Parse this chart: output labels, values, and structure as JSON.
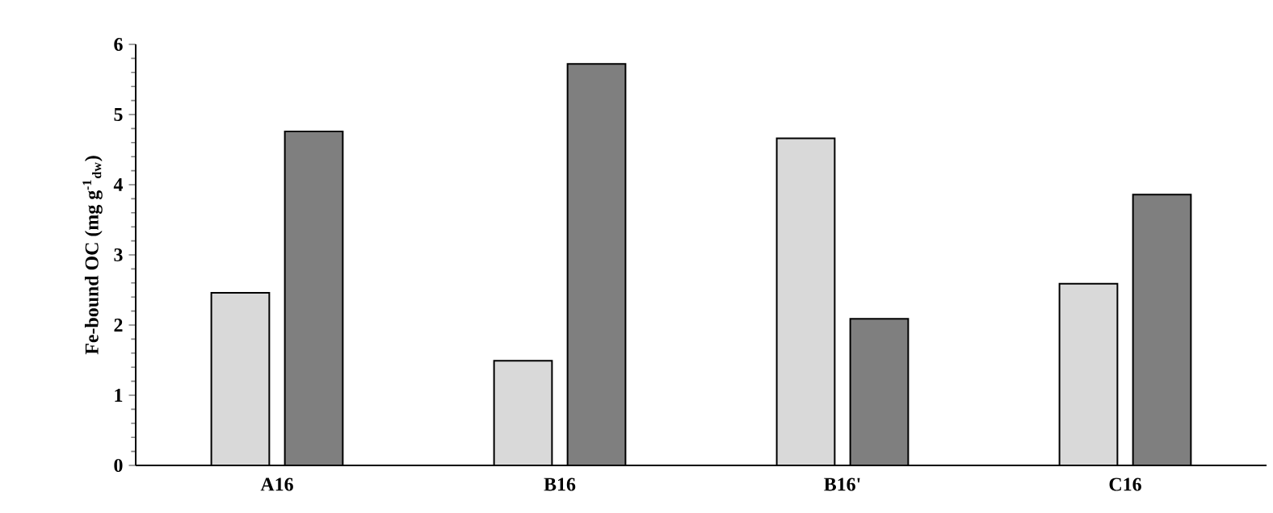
{
  "chart_data": {
    "type": "bar",
    "ylabel": "Fe-bound OC (mg g$^{-1}$$_{dw}$)",
    "categories": [
      "A16",
      "B16",
      "B16'",
      "C16"
    ],
    "series": [
      {
        "color": "#d9d9d9",
        "values": [
          2.46,
          1.49,
          4.66,
          2.59
        ]
      },
      {
        "color": "#7f7f7f",
        "values": [
          4.76,
          5.72,
          2.09,
          3.86
        ]
      }
    ],
    "ylim": [
      0,
      6
    ],
    "yticks": [
      0,
      1,
      2,
      3,
      4,
      5,
      6
    ],
    "grid": false
  }
}
